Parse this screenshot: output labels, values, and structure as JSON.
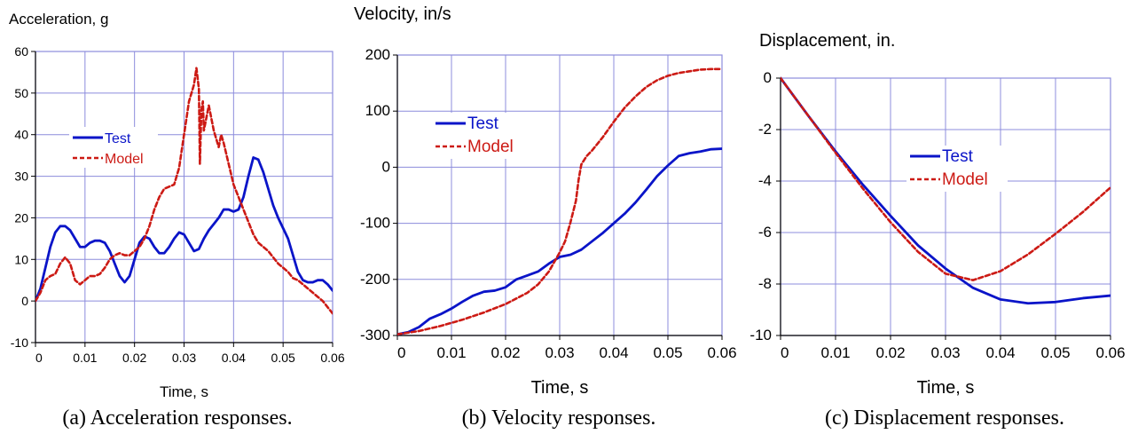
{
  "colors": {
    "test": "#0a14c8",
    "model": "#cc1a14",
    "grid": "#8c8cdc",
    "axis": "#000000"
  },
  "chart_data": [
    {
      "type": "line",
      "title": "Acceleration, g",
      "xlabel": "Time, s",
      "ylabel": "",
      "caption": "(a) Acceleration responses.",
      "xlim": [
        0,
        0.06
      ],
      "ylim": [
        -10,
        60
      ],
      "xticks": [
        0,
        0.01,
        0.02,
        0.03,
        0.04,
        0.05,
        0.06
      ],
      "xtick_labels": [
        "0",
        "0.01",
        "0.02",
        "0.03",
        "0.04",
        "0.05",
        "0.06"
      ],
      "yticks": [
        -10,
        0,
        10,
        20,
        30,
        40,
        50,
        60
      ],
      "ytick_labels": [
        "-10",
        "0",
        "10",
        "20",
        "30",
        "40",
        "50",
        "60"
      ],
      "grid": true,
      "legend": "top-left",
      "series": [
        {
          "name": "Test",
          "style": "solid",
          "x": [
            0,
            0.001,
            0.002,
            0.003,
            0.004,
            0.005,
            0.006,
            0.007,
            0.008,
            0.009,
            0.01,
            0.011,
            0.012,
            0.013,
            0.014,
            0.015,
            0.016,
            0.017,
            0.018,
            0.019,
            0.02,
            0.021,
            0.022,
            0.023,
            0.024,
            0.025,
            0.026,
            0.027,
            0.028,
            0.029,
            0.03,
            0.031,
            0.032,
            0.033,
            0.034,
            0.035,
            0.036,
            0.037,
            0.038,
            0.039,
            0.04,
            0.041,
            0.042,
            0.043,
            0.044,
            0.045,
            0.046,
            0.047,
            0.048,
            0.049,
            0.05,
            0.051,
            0.052,
            0.053,
            0.054,
            0.055,
            0.056,
            0.057,
            0.058,
            0.059,
            0.06
          ],
          "values": [
            0,
            3,
            8,
            13,
            16.5,
            18,
            18,
            17,
            15,
            13,
            13,
            14,
            14.5,
            14.5,
            14,
            12,
            9,
            6,
            4.5,
            6,
            10,
            14,
            15.5,
            15,
            13,
            11.5,
            11.5,
            13,
            15,
            16.5,
            16,
            14,
            12,
            12.5,
            15,
            17,
            18.5,
            20,
            22,
            22,
            21.5,
            22,
            25,
            30,
            34.5,
            34,
            31,
            27,
            23,
            20,
            17.5,
            15,
            11,
            7,
            5,
            4.5,
            4.5,
            5,
            5,
            4,
            2.5
          ]
        },
        {
          "name": "Model",
          "style": "dashed",
          "x": [
            0,
            0.001,
            0.002,
            0.003,
            0.004,
            0.005,
            0.006,
            0.007,
            0.008,
            0.009,
            0.01,
            0.011,
            0.012,
            0.013,
            0.014,
            0.015,
            0.016,
            0.017,
            0.018,
            0.019,
            0.02,
            0.021,
            0.022,
            0.023,
            0.024,
            0.025,
            0.026,
            0.027,
            0.028,
            0.029,
            0.03,
            0.031,
            0.032,
            0.0325,
            0.033,
            0.0332,
            0.0335,
            0.0338,
            0.034,
            0.0345,
            0.035,
            0.036,
            0.037,
            0.0375,
            0.038,
            0.039,
            0.04,
            0.041,
            0.042,
            0.043,
            0.044,
            0.045,
            0.046,
            0.047,
            0.048,
            0.049,
            0.05,
            0.051,
            0.052,
            0.053,
            0.054,
            0.055,
            0.056,
            0.057,
            0.058,
            0.059,
            0.06
          ],
          "values": [
            0,
            2,
            5,
            6,
            6.5,
            9,
            10.5,
            9,
            5,
            4,
            5,
            6,
            6,
            6.5,
            8,
            10,
            11,
            11.5,
            11,
            11,
            12,
            13,
            15,
            18,
            22,
            25,
            27,
            27.5,
            28,
            32,
            40,
            48,
            52,
            56,
            51,
            33,
            46,
            48,
            41,
            44,
            47,
            41,
            37,
            40,
            38,
            33,
            28,
            25,
            22,
            19,
            16,
            14,
            13,
            12,
            10.5,
            9,
            8,
            7,
            5.5,
            5,
            4,
            3,
            2,
            1,
            0,
            -1.5,
            -3
          ]
        }
      ]
    },
    {
      "type": "line",
      "title": "Velocity, in/s",
      "xlabel": "Time, s",
      "ylabel": "",
      "caption": "(b) Velocity responses.",
      "xlim": [
        0,
        0.06
      ],
      "ylim": [
        -300,
        200
      ],
      "xticks": [
        0,
        0.01,
        0.02,
        0.03,
        0.04,
        0.05,
        0.06
      ],
      "xtick_labels": [
        "0",
        "0.01",
        "0.02",
        "0.03",
        "0.04",
        "0.05",
        "0.06"
      ],
      "yticks": [
        -300,
        -200,
        -100,
        0,
        100,
        200
      ],
      "ytick_labels": [
        "-300",
        "-200",
        "-100",
        "0",
        "100",
        "200"
      ],
      "grid": true,
      "legend": "top-left",
      "series": [
        {
          "name": "Test",
          "style": "solid",
          "x": [
            0,
            0.002,
            0.004,
            0.006,
            0.008,
            0.01,
            0.012,
            0.014,
            0.016,
            0.018,
            0.02,
            0.022,
            0.024,
            0.026,
            0.028,
            0.03,
            0.032,
            0.034,
            0.036,
            0.038,
            0.04,
            0.042,
            0.044,
            0.046,
            0.048,
            0.05,
            0.052,
            0.054,
            0.056,
            0.058,
            0.06
          ],
          "values": [
            -298,
            -294,
            -285,
            -270,
            -262,
            -252,
            -240,
            -229,
            -222,
            -220,
            -214,
            -200,
            -193,
            -186,
            -172,
            -160,
            -156,
            -147,
            -132,
            -117,
            -100,
            -83,
            -63,
            -40,
            -16,
            3,
            20,
            25,
            28,
            32,
            33
          ]
        },
        {
          "name": "Model",
          "style": "dashed",
          "x": [
            0,
            0.004,
            0.008,
            0.012,
            0.016,
            0.02,
            0.024,
            0.026,
            0.028,
            0.03,
            0.031,
            0.032,
            0.033,
            0.0335,
            0.034,
            0.035,
            0.036,
            0.038,
            0.04,
            0.042,
            0.044,
            0.046,
            0.048,
            0.05,
            0.052,
            0.054,
            0.056,
            0.058,
            0.06
          ],
          "values": [
            -298,
            -292,
            -283,
            -272,
            -259,
            -244,
            -224,
            -209,
            -186,
            -152,
            -132,
            -98,
            -60,
            -22,
            5,
            20,
            30,
            54,
            81,
            106,
            126,
            143,
            155,
            163,
            168,
            171,
            174,
            175,
            175
          ]
        }
      ]
    },
    {
      "type": "line",
      "title": "Displacement, in.",
      "xlabel": "Time, s",
      "ylabel": "",
      "caption": "(c) Displacement responses.",
      "xlim": [
        0,
        0.06
      ],
      "ylim": [
        -10,
        0
      ],
      "xticks": [
        0,
        0.01,
        0.02,
        0.03,
        0.04,
        0.05,
        0.06
      ],
      "xtick_labels": [
        "0",
        "0.01",
        "0.02",
        "0.03",
        "0.04",
        "0.05",
        "0.06"
      ],
      "yticks": [
        -10,
        -8,
        -6,
        -4,
        -2,
        0
      ],
      "ytick_labels": [
        "-10",
        "-8",
        "-6",
        "-4",
        "-2",
        "0"
      ],
      "grid": true,
      "legend": "top-center",
      "series": [
        {
          "name": "Test",
          "style": "solid",
          "x": [
            0,
            0.005,
            0.01,
            0.015,
            0.02,
            0.025,
            0.03,
            0.035,
            0.04,
            0.045,
            0.05,
            0.055,
            0.06
          ],
          "values": [
            0,
            -1.45,
            -2.85,
            -4.15,
            -5.35,
            -6.5,
            -7.4,
            -8.15,
            -8.6,
            -8.75,
            -8.7,
            -8.55,
            -8.45
          ]
        },
        {
          "name": "Model",
          "style": "dashed",
          "x": [
            0,
            0.005,
            0.01,
            0.015,
            0.02,
            0.025,
            0.03,
            0.035,
            0.04,
            0.045,
            0.05,
            0.055,
            0.06
          ],
          "values": [
            0,
            -1.45,
            -2.9,
            -4.3,
            -5.6,
            -6.75,
            -7.6,
            -7.85,
            -7.5,
            -6.85,
            -6.05,
            -5.2,
            -4.25
          ]
        }
      ]
    }
  ]
}
